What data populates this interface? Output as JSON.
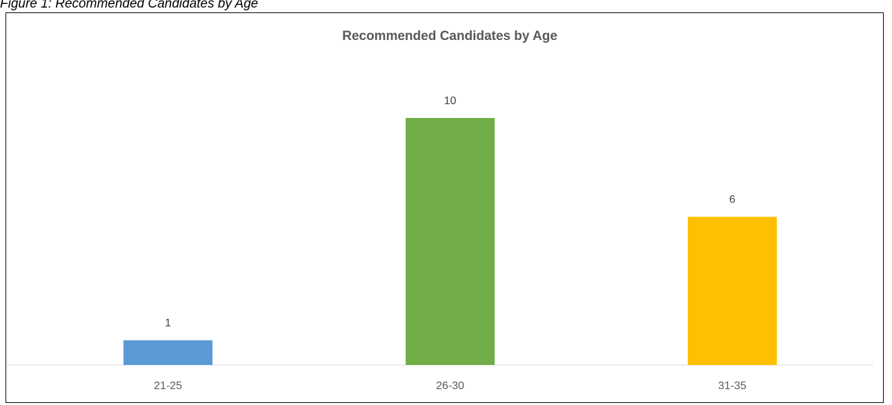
{
  "caption": "Figure 1: Recommended Candidates by Age",
  "chart_data": {
    "type": "bar",
    "title": "Recommended Candidates by Age",
    "categories": [
      "21-25",
      "26-30",
      "31-35"
    ],
    "values": [
      1,
      10,
      6
    ],
    "colors": [
      "#5B9BD5",
      "#70AD47",
      "#FFC000"
    ],
    "xlabel": "",
    "ylabel": "",
    "ylim": [
      0,
      10
    ],
    "grid": false,
    "legend": "none",
    "data_labels": true
  }
}
